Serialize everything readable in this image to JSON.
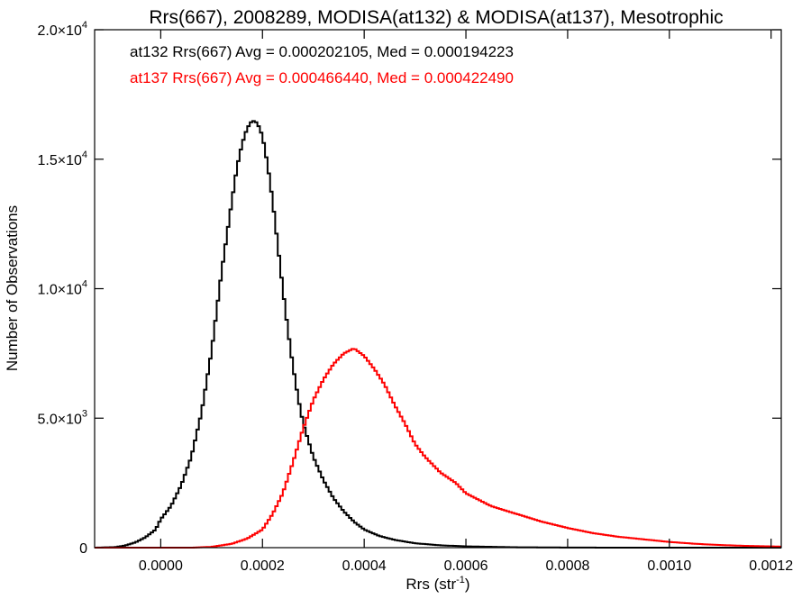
{
  "chart_data": {
    "type": "histogram-step",
    "title": "Rrs(667), 2008289, MODISA(at132) & MODISA(at137), Mesotrophic",
    "xlabel": "Rrs (str",
    "xlabel_sup": "-1",
    "xlabel_close": ")",
    "ylabel": "Number of Observations",
    "xlim": [
      -0.00013,
      0.00122
    ],
    "ylim": [
      0,
      20000
    ],
    "x_ticks": [
      {
        "value": 0.0,
        "label": "0.0000"
      },
      {
        "value": 0.0002,
        "label": "0.0002"
      },
      {
        "value": 0.0004,
        "label": "0.0004"
      },
      {
        "value": 0.0006,
        "label": "0.0006"
      },
      {
        "value": 0.0008,
        "label": "0.0008"
      },
      {
        "value": 0.001,
        "label": "0.0010"
      },
      {
        "value": 0.0012,
        "label": "0.0012"
      }
    ],
    "y_ticks": [
      {
        "value": 0,
        "label": "0",
        "sup": ""
      },
      {
        "value": 5000,
        "label": "5.0×10",
        "sup": "3"
      },
      {
        "value": 10000,
        "label": "1.0×10",
        "sup": "4"
      },
      {
        "value": 15000,
        "label": "1.5×10",
        "sup": "4"
      },
      {
        "value": 20000,
        "label": "2.0×10",
        "sup": "4"
      }
    ],
    "bin_width": 5e-06,
    "series": [
      {
        "name": "at132",
        "label": "at132 Rrs(667) Avg = 0.000202105, Med = 0.000194223",
        "color": "#000000",
        "x": [
          -0.00013,
          -9e-05,
          -7e-05,
          -5e-05,
          -3e-05,
          -1e-05,
          0.0,
          2e-05,
          4e-05,
          6e-05,
          8e-05,
          0.0001,
          0.00012,
          0.00014,
          0.00015,
          0.00016,
          0.00017,
          0.00018,
          0.00019,
          0.0002,
          0.00021,
          0.00022,
          0.00023,
          0.00024,
          0.00025,
          0.00026,
          0.00027,
          0.00028,
          0.0003,
          0.00032,
          0.00034,
          0.00036,
          0.00038,
          0.0004,
          0.00043,
          0.00046,
          0.0005,
          0.00055,
          0.0006,
          0.0007,
          0.0008,
          0.0009,
          0.00122
        ],
        "y": [
          0,
          20,
          80,
          200,
          400,
          700,
          1100,
          1600,
          2400,
          3500,
          5200,
          7600,
          10700,
          13400,
          14700,
          15600,
          16200,
          16500,
          16400,
          15900,
          14800,
          13400,
          11700,
          10000,
          8400,
          7000,
          5800,
          4800,
          3500,
          2600,
          1900,
          1400,
          1000,
          700,
          450,
          300,
          170,
          90,
          50,
          15,
          5,
          0,
          0
        ]
      },
      {
        "name": "at137",
        "label": "at137 Rrs(667) Avg = 0.000466440, Med = 0.000422490",
        "color": "#ff0000",
        "x": [
          -0.00013,
          6e-05,
          0.0001,
          0.00014,
          0.00017,
          0.0002,
          0.00022,
          0.00024,
          0.00026,
          0.00028,
          0.0003,
          0.00032,
          0.00034,
          0.00036,
          0.00038,
          0.0004,
          0.00042,
          0.00044,
          0.00046,
          0.00048,
          0.0005,
          0.00052,
          0.00055,
          0.00058,
          0.0006,
          0.00065,
          0.0007,
          0.00075,
          0.0008,
          0.00085,
          0.0009,
          0.00095,
          0.001,
          0.00105,
          0.0011,
          0.00115,
          0.00122
        ],
        "y": [
          0,
          0,
          30,
          150,
          350,
          700,
          1300,
          2100,
          3300,
          4600,
          5700,
          6500,
          7100,
          7500,
          7700,
          7400,
          6900,
          6300,
          5500,
          4800,
          4000,
          3500,
          2900,
          2500,
          2100,
          1600,
          1300,
          1000,
          760,
          560,
          420,
          320,
          220,
          150,
          100,
          70,
          40
        ]
      }
    ]
  }
}
